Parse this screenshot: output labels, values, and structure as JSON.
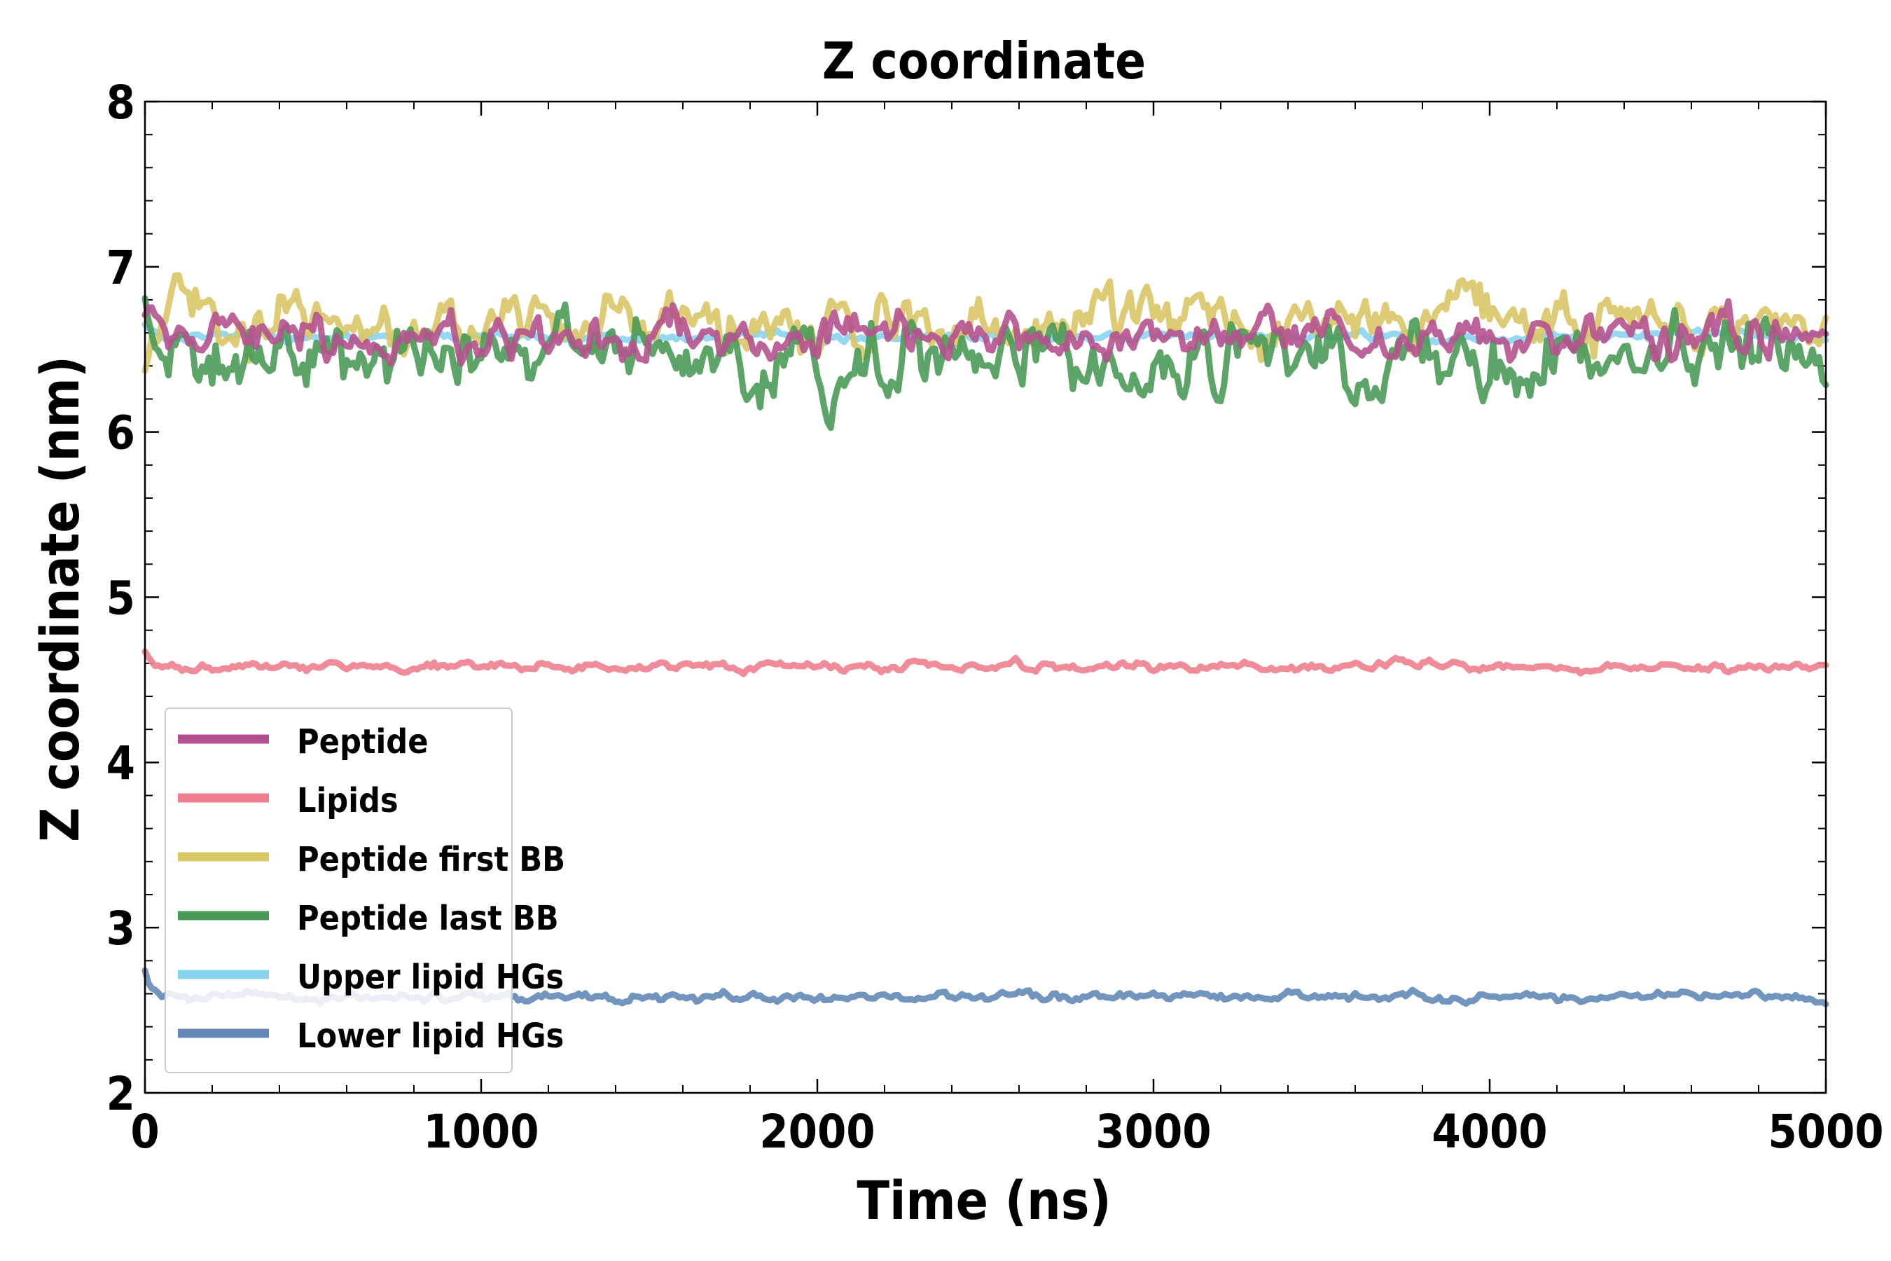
{
  "chart_data": {
    "type": "line",
    "title": "Z coordinate",
    "xlabel": "Time (ns)",
    "ylabel": "Z coordinate (nm)",
    "xlim": [
      0,
      5000
    ],
    "ylim": [
      2,
      8
    ],
    "xticks": [
      0,
      1000,
      2000,
      3000,
      4000,
      5000
    ],
    "yticks": [
      2,
      3,
      4,
      5,
      6,
      7,
      8
    ],
    "x_minor_step": 200,
    "y_minor_step": 0.2,
    "grid": false,
    "legend_position": "lower-left",
    "series": [
      {
        "name": "Peptide",
        "color": "#b5528e",
        "mean": 6.57,
        "amplitude": 0.09,
        "start": 6.75,
        "seed": 11
      },
      {
        "name": "Lipids",
        "color": "#ee7f8e",
        "mean": 4.58,
        "amplitude": 0.02,
        "start": 4.72,
        "seed": 23
      },
      {
        "name": "Peptide first BB",
        "color": "#d9c766",
        "mean": 6.68,
        "amplitude": 0.12,
        "start": 6.3,
        "seed": 37
      },
      {
        "name": "Peptide last BB",
        "color": "#4a9a56",
        "mean": 6.45,
        "amplitude": 0.14,
        "start": 6.85,
        "seed": 53
      },
      {
        "name": "Upper lipid HGs",
        "color": "#88d4ef",
        "mean": 6.58,
        "amplitude": 0.02,
        "start": 6.7,
        "seed": 71
      },
      {
        "name": "Lower lipid HGs",
        "color": "#6389b7",
        "mean": 2.58,
        "amplitude": 0.02,
        "start": 2.83,
        "seed": 89
      }
    ]
  }
}
